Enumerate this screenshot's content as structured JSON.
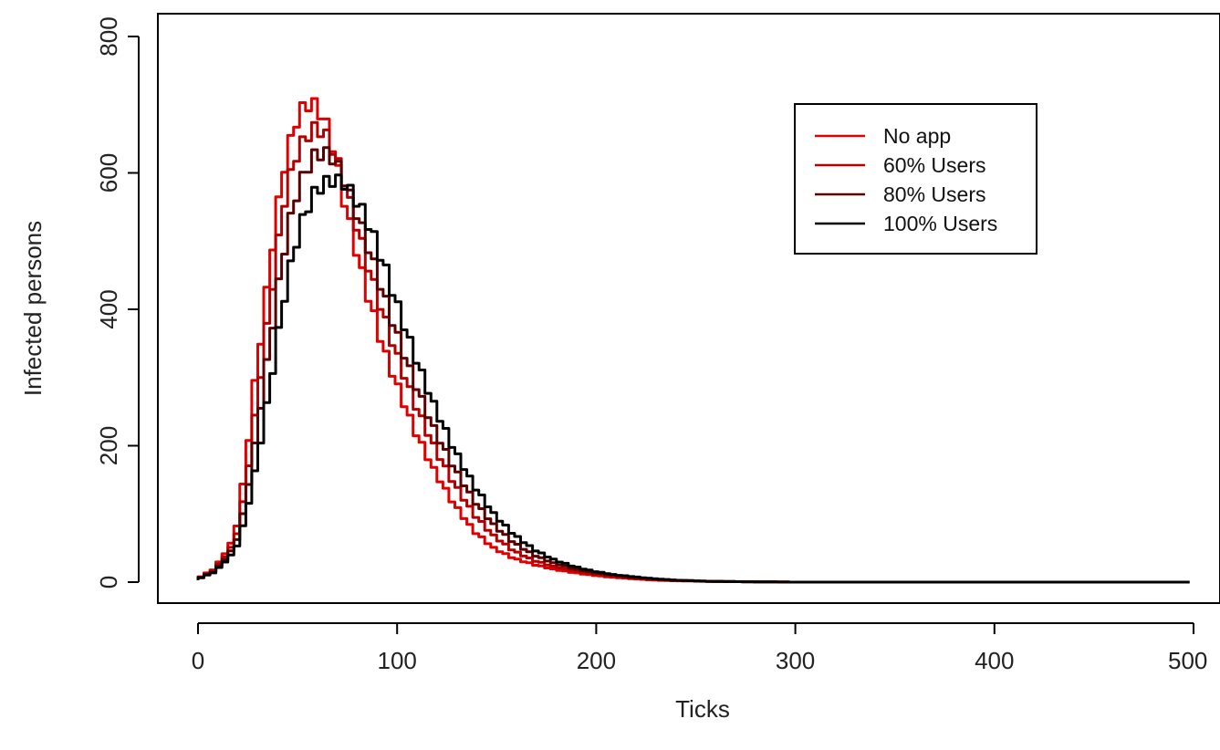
{
  "chart_data": {
    "type": "line",
    "title": "",
    "xlabel": "Ticks",
    "ylabel": "Infected persons",
    "xlim": [
      0,
      500
    ],
    "ylim": [
      0,
      800
    ],
    "xticks": [
      "0",
      "100",
      "200",
      "300",
      "400",
      "500"
    ],
    "yticks": [
      "0",
      "200",
      "400",
      "600",
      "800"
    ],
    "grid": false,
    "legend_position": "top-right",
    "series": [
      {
        "name": "No app",
        "color": "#e00000",
        "points": [
          [
            0,
            3
          ],
          [
            10,
            20
          ],
          [
            20,
            65
          ],
          [
            25,
            160
          ],
          [
            30,
            290
          ],
          [
            35,
            400
          ],
          [
            40,
            520
          ],
          [
            45,
            610
          ],
          [
            50,
            670
          ],
          [
            55,
            700
          ],
          [
            60,
            700
          ],
          [
            65,
            680
          ],
          [
            70,
            630
          ],
          [
            75,
            560
          ],
          [
            80,
            500
          ],
          [
            85,
            440
          ],
          [
            90,
            390
          ],
          [
            95,
            340
          ],
          [
            100,
            300
          ],
          [
            110,
            225
          ],
          [
            120,
            165
          ],
          [
            130,
            115
          ],
          [
            140,
            75
          ],
          [
            150,
            50
          ],
          [
            160,
            35
          ],
          [
            170,
            26
          ],
          [
            180,
            19
          ],
          [
            190,
            14
          ],
          [
            200,
            10
          ],
          [
            210,
            7
          ],
          [
            220,
            5
          ],
          [
            230,
            3
          ],
          [
            240,
            2
          ],
          [
            260,
            1
          ],
          [
            300,
            0
          ],
          [
            500,
            0
          ]
        ]
      },
      {
        "name": "60% Users",
        "color": "#b40000",
        "points": [
          [
            0,
            3
          ],
          [
            10,
            18
          ],
          [
            20,
            58
          ],
          [
            25,
            130
          ],
          [
            30,
            240
          ],
          [
            35,
            350
          ],
          [
            40,
            460
          ],
          [
            45,
            560
          ],
          [
            50,
            620
          ],
          [
            55,
            650
          ],
          [
            60,
            665
          ],
          [
            65,
            660
          ],
          [
            70,
            630
          ],
          [
            75,
            585
          ],
          [
            80,
            535
          ],
          [
            85,
            485
          ],
          [
            90,
            435
          ],
          [
            95,
            390
          ],
          [
            100,
            345
          ],
          [
            110,
            265
          ],
          [
            120,
            200
          ],
          [
            130,
            145
          ],
          [
            140,
            100
          ],
          [
            150,
            68
          ],
          [
            160,
            46
          ],
          [
            170,
            32
          ],
          [
            180,
            23
          ],
          [
            190,
            17
          ],
          [
            200,
            12
          ],
          [
            210,
            9
          ],
          [
            220,
            6
          ],
          [
            230,
            4
          ],
          [
            240,
            3
          ],
          [
            260,
            1
          ],
          [
            300,
            0
          ],
          [
            500,
            0
          ]
        ]
      },
      {
        "name": "80% Users",
        "color": "#5a0000",
        "points": [
          [
            0,
            3
          ],
          [
            10,
            16
          ],
          [
            20,
            52
          ],
          [
            25,
            110
          ],
          [
            30,
            200
          ],
          [
            35,
            300
          ],
          [
            40,
            400
          ],
          [
            45,
            490
          ],
          [
            50,
            560
          ],
          [
            55,
            600
          ],
          [
            60,
            625
          ],
          [
            65,
            630
          ],
          [
            70,
            620
          ],
          [
            75,
            590
          ],
          [
            80,
            550
          ],
          [
            85,
            510
          ],
          [
            90,
            465
          ],
          [
            95,
            420
          ],
          [
            100,
            375
          ],
          [
            110,
            295
          ],
          [
            120,
            225
          ],
          [
            130,
            168
          ],
          [
            140,
            120
          ],
          [
            150,
            84
          ],
          [
            160,
            58
          ],
          [
            170,
            40
          ],
          [
            180,
            28
          ],
          [
            190,
            20
          ],
          [
            200,
            14
          ],
          [
            210,
            10
          ],
          [
            220,
            7
          ],
          [
            230,
            5
          ],
          [
            240,
            3
          ],
          [
            260,
            1
          ],
          [
            300,
            0
          ],
          [
            500,
            0
          ]
        ]
      },
      {
        "name": "100% Users",
        "color": "#000000",
        "points": [
          [
            0,
            3
          ],
          [
            10,
            15
          ],
          [
            20,
            45
          ],
          [
            25,
            90
          ],
          [
            30,
            160
          ],
          [
            35,
            240
          ],
          [
            40,
            330
          ],
          [
            45,
            420
          ],
          [
            50,
            490
          ],
          [
            55,
            540
          ],
          [
            60,
            570
          ],
          [
            65,
            585
          ],
          [
            70,
            590
          ],
          [
            75,
            585
          ],
          [
            80,
            565
          ],
          [
            85,
            540
          ],
          [
            90,
            505
          ],
          [
            95,
            465
          ],
          [
            100,
            420
          ],
          [
            110,
            335
          ],
          [
            120,
            260
          ],
          [
            130,
            195
          ],
          [
            140,
            142
          ],
          [
            150,
            100
          ],
          [
            160,
            70
          ],
          [
            170,
            48
          ],
          [
            180,
            33
          ],
          [
            190,
            23
          ],
          [
            200,
            16
          ],
          [
            210,
            11
          ],
          [
            220,
            8
          ],
          [
            230,
            5
          ],
          [
            240,
            3
          ],
          [
            260,
            1
          ],
          [
            300,
            0
          ],
          [
            500,
            0
          ]
        ]
      }
    ]
  }
}
